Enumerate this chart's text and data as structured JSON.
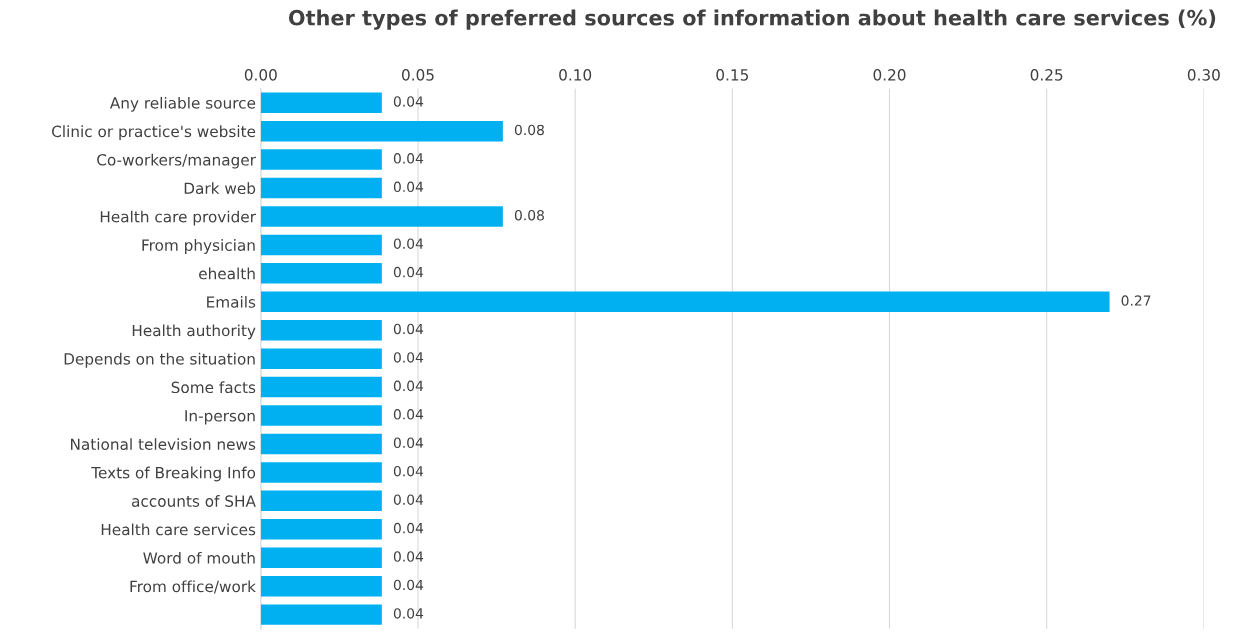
{
  "chart_data": {
    "type": "bar",
    "orientation": "horizontal",
    "title": "Other types of preferred sources of information about health care services (%)",
    "categories": [
      "Any reliable source",
      "Clinic or practice's website",
      "Co-workers/manager",
      "Dark web",
      "Health care provider",
      "From physician",
      "ehealth",
      "Emails",
      "Health authority",
      "Depends on the situation",
      "Some facts",
      "In-person",
      "National television news",
      "Texts of Breaking Info",
      "accounts of SHA",
      "Health care services",
      "Word of mouth",
      "From office/work",
      null
    ],
    "values": [
      0.0385,
      0.077,
      0.0385,
      0.0385,
      0.077,
      0.0385,
      0.0385,
      0.27,
      0.0385,
      0.0385,
      0.0385,
      0.0385,
      0.0385,
      0.0385,
      0.0385,
      0.0385,
      0.0385,
      0.0385,
      0.0385
    ],
    "value_labels": [
      "0.04",
      "0.08",
      "0.04",
      "0.04",
      "0.08",
      "0.04",
      "0.04",
      "0.27",
      "0.04",
      "0.04",
      "0.04",
      "0.04",
      "0.04",
      "0.04",
      "0.04",
      "0.04",
      "0.04",
      "0.04",
      "0.04"
    ],
    "color": "#00b0f0",
    "xlim": [
      0,
      0.3
    ],
    "xticks": [
      {
        "value": 0,
        "label": "0.00"
      },
      {
        "value": 0.05,
        "label": "0.05"
      },
      {
        "value": 0.1,
        "label": "0.10"
      },
      {
        "value": 0.15,
        "label": "0.15"
      },
      {
        "value": 0.2,
        "label": "0.20"
      },
      {
        "value": 0.25,
        "label": "0.25"
      },
      {
        "value": 0.3,
        "label": "0.30"
      }
    ],
    "grid": "x"
  }
}
